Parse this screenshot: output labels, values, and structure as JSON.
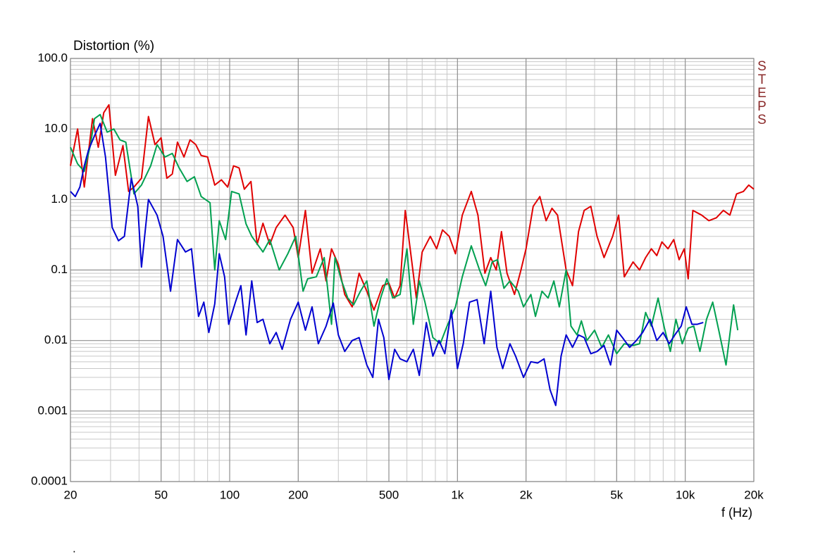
{
  "chart_data": {
    "type": "line",
    "y_label": "Distortion (%)",
    "x_label": "f (Hz)",
    "watermark": "STEPS",
    "footnote": ".",
    "xscale": "log",
    "yscale": "log",
    "grid": true,
    "minor_grid": true,
    "xlim": [
      20,
      20000
    ],
    "ylim": [
      0.0001,
      100
    ],
    "xticks": [
      20,
      50,
      100,
      200,
      500,
      {
        "value": 1000,
        "label": "1k"
      },
      {
        "value": 2000,
        "label": "2k"
      },
      {
        "value": 5000,
        "label": "5k"
      },
      {
        "value": 10000,
        "label": "10k"
      },
      {
        "value": 20000,
        "label": "20k"
      }
    ],
    "yticks": [
      0.0001,
      0.001,
      0.01,
      0.1,
      {
        "value": 1,
        "label": "1.0"
      },
      {
        "value": 10,
        "label": "10.0"
      },
      {
        "value": 100,
        "label": "100.0"
      }
    ],
    "series": [
      {
        "color": "#e00000",
        "x": [
          20,
          21.5,
          23,
          25,
          26.5,
          28,
          29.5,
          31.5,
          34,
          36,
          38,
          41,
          44,
          47,
          50,
          53,
          56,
          59,
          63,
          67,
          71,
          75,
          80,
          86,
          92,
          98,
          104,
          110,
          116,
          124,
          132,
          140,
          150,
          160,
          175,
          190,
          200,
          215,
          230,
          250,
          265,
          280,
          300,
          320,
          345,
          370,
          400,
          430,
          470,
          500,
          530,
          560,
          590,
          620,
          660,
          700,
          760,
          810,
          860,
          920,
          980,
          1050,
          1150,
          1230,
          1320,
          1400,
          1480,
          1560,
          1650,
          1780,
          1900,
          2000,
          2150,
          2300,
          2450,
          2600,
          2750,
          3000,
          3200,
          3400,
          3600,
          3850,
          4100,
          4400,
          4800,
          5100,
          5400,
          5900,
          6300,
          6700,
          7100,
          7500,
          7900,
          8400,
          8900,
          9400,
          9900,
          10300,
          10800,
          11800,
          12700,
          13700,
          14700,
          15700,
          16800,
          18000,
          19000,
          20000
        ],
        "values": [
          3.0,
          10,
          1.5,
          14,
          5.5,
          17,
          22,
          2.2,
          5.8,
          1.3,
          1.5,
          2.0,
          15,
          6,
          7.5,
          2.0,
          2.3,
          6.5,
          4.0,
          7.0,
          6.0,
          4.2,
          4.0,
          1.6,
          1.9,
          1.5,
          3.0,
          2.8,
          1.4,
          1.8,
          0.23,
          0.46,
          0.23,
          0.4,
          0.6,
          0.4,
          0.15,
          0.7,
          0.09,
          0.2,
          0.07,
          0.2,
          0.12,
          0.045,
          0.03,
          0.09,
          0.05,
          0.027,
          0.06,
          0.065,
          0.04,
          0.06,
          0.7,
          0.2,
          0.04,
          0.18,
          0.3,
          0.2,
          0.37,
          0.3,
          0.17,
          0.6,
          1.3,
          0.6,
          0.09,
          0.15,
          0.1,
          0.35,
          0.09,
          0.045,
          0.1,
          0.2,
          0.8,
          1.1,
          0.5,
          0.75,
          0.6,
          0.1,
          0.06,
          0.35,
          0.7,
          0.8,
          0.3,
          0.15,
          0.3,
          0.6,
          0.08,
          0.13,
          0.1,
          0.15,
          0.2,
          0.16,
          0.25,
          0.2,
          0.27,
          0.14,
          0.2,
          0.075,
          0.7,
          0.6,
          0.5,
          0.55,
          0.7,
          0.6,
          1.2,
          1.3,
          1.6,
          1.4
        ]
      },
      {
        "color": "#00a050",
        "x": [
          20,
          21.5,
          23,
          24.5,
          25.5,
          27,
          29,
          31,
          33,
          35,
          38,
          41,
          45,
          48,
          52,
          56,
          60,
          65,
          70,
          75,
          82,
          86,
          90,
          96,
          102,
          110,
          118,
          125,
          140,
          150,
          165,
          180,
          195,
          210,
          220,
          240,
          260,
          270,
          280,
          290,
          310,
          330,
          350,
          375,
          400,
          430,
          460,
          490,
          520,
          560,
          600,
          640,
          680,
          720,
          780,
          840,
          900,
          980,
          1050,
          1150,
          1250,
          1330,
          1420,
          1500,
          1600,
          1700,
          1850,
          1950,
          2100,
          2200,
          2350,
          2500,
          2650,
          2800,
          3000,
          3150,
          3350,
          3500,
          3700,
          4000,
          4300,
          4600,
          5000,
          5400,
          5900,
          6300,
          6700,
          7100,
          7600,
          8100,
          8600,
          9100,
          9700,
          10300,
          10900,
          11600,
          12400,
          13200,
          14100,
          15100,
          16300,
          17000
        ],
        "values": [
          5.5,
          3.2,
          2.5,
          6,
          14,
          16,
          9,
          10,
          7,
          6.5,
          1.2,
          1.6,
          3,
          6,
          4,
          4.5,
          2.8,
          1.8,
          2.1,
          1.1,
          0.9,
          0.1,
          0.5,
          0.27,
          1.3,
          1.2,
          0.45,
          0.3,
          0.18,
          0.27,
          0.1,
          0.17,
          0.3,
          0.05,
          0.075,
          0.08,
          0.15,
          0.05,
          0.017,
          0.15,
          0.07,
          0.04,
          0.032,
          0.05,
          0.07,
          0.016,
          0.04,
          0.075,
          0.04,
          0.045,
          0.2,
          0.017,
          0.07,
          0.035,
          0.011,
          0.009,
          0.016,
          0.03,
          0.08,
          0.22,
          0.1,
          0.06,
          0.13,
          0.14,
          0.055,
          0.07,
          0.05,
          0.03,
          0.045,
          0.022,
          0.05,
          0.04,
          0.07,
          0.03,
          0.1,
          0.016,
          0.012,
          0.019,
          0.01,
          0.014,
          0.008,
          0.012,
          0.0065,
          0.009,
          0.0085,
          0.009,
          0.025,
          0.016,
          0.04,
          0.015,
          0.007,
          0.02,
          0.009,
          0.015,
          0.016,
          0.007,
          0.02,
          0.035,
          0.013,
          0.0045,
          0.032,
          0.014
        ]
      },
      {
        "color": "#0000d0",
        "x": [
          20,
          21,
          22,
          23,
          24,
          25.5,
          27,
          28.5,
          30.5,
          32.5,
          34.5,
          37,
          39.5,
          41,
          44,
          48,
          51,
          55,
          59,
          64,
          68,
          73,
          77,
          81,
          86,
          90,
          95,
          99,
          106,
          112,
          118,
          125,
          132,
          140,
          150,
          160,
          170,
          185,
          200,
          215,
          230,
          245,
          265,
          285,
          300,
          320,
          345,
          370,
          400,
          425,
          450,
          475,
          500,
          530,
          560,
          600,
          640,
          680,
          730,
          780,
          830,
          880,
          940,
          1000,
          1060,
          1130,
          1220,
          1310,
          1400,
          1490,
          1580,
          1700,
          1800,
          1950,
          2100,
          2250,
          2400,
          2550,
          2700,
          2850,
          3000,
          3200,
          3400,
          3600,
          3850,
          4100,
          4400,
          4700,
          5000,
          5300,
          5700,
          6100,
          6500,
          7000,
          7500,
          8000,
          8500,
          9000,
          9600,
          10100,
          10700,
          11300,
          12000
        ],
        "values": [
          1.3,
          1.1,
          1.5,
          3,
          5,
          8,
          12,
          4,
          0.4,
          0.26,
          0.3,
          2,
          0.8,
          0.11,
          1.0,
          0.6,
          0.3,
          0.05,
          0.27,
          0.18,
          0.2,
          0.022,
          0.035,
          0.013,
          0.033,
          0.17,
          0.08,
          0.017,
          0.035,
          0.06,
          0.012,
          0.07,
          0.018,
          0.02,
          0.009,
          0.013,
          0.0075,
          0.02,
          0.035,
          0.014,
          0.03,
          0.009,
          0.016,
          0.034,
          0.012,
          0.007,
          0.01,
          0.011,
          0.0045,
          0.003,
          0.02,
          0.011,
          0.0028,
          0.0075,
          0.0055,
          0.005,
          0.0075,
          0.0032,
          0.018,
          0.006,
          0.01,
          0.0065,
          0.027,
          0.004,
          0.009,
          0.035,
          0.038,
          0.009,
          0.05,
          0.008,
          0.004,
          0.009,
          0.006,
          0.003,
          0.005,
          0.0048,
          0.0055,
          0.002,
          0.0012,
          0.006,
          0.012,
          0.008,
          0.012,
          0.011,
          0.0065,
          0.007,
          0.0085,
          0.0045,
          0.014,
          0.011,
          0.008,
          0.01,
          0.013,
          0.02,
          0.01,
          0.013,
          0.009,
          0.012,
          0.016,
          0.03,
          0.017,
          0.017,
          0.018
        ]
      }
    ]
  }
}
